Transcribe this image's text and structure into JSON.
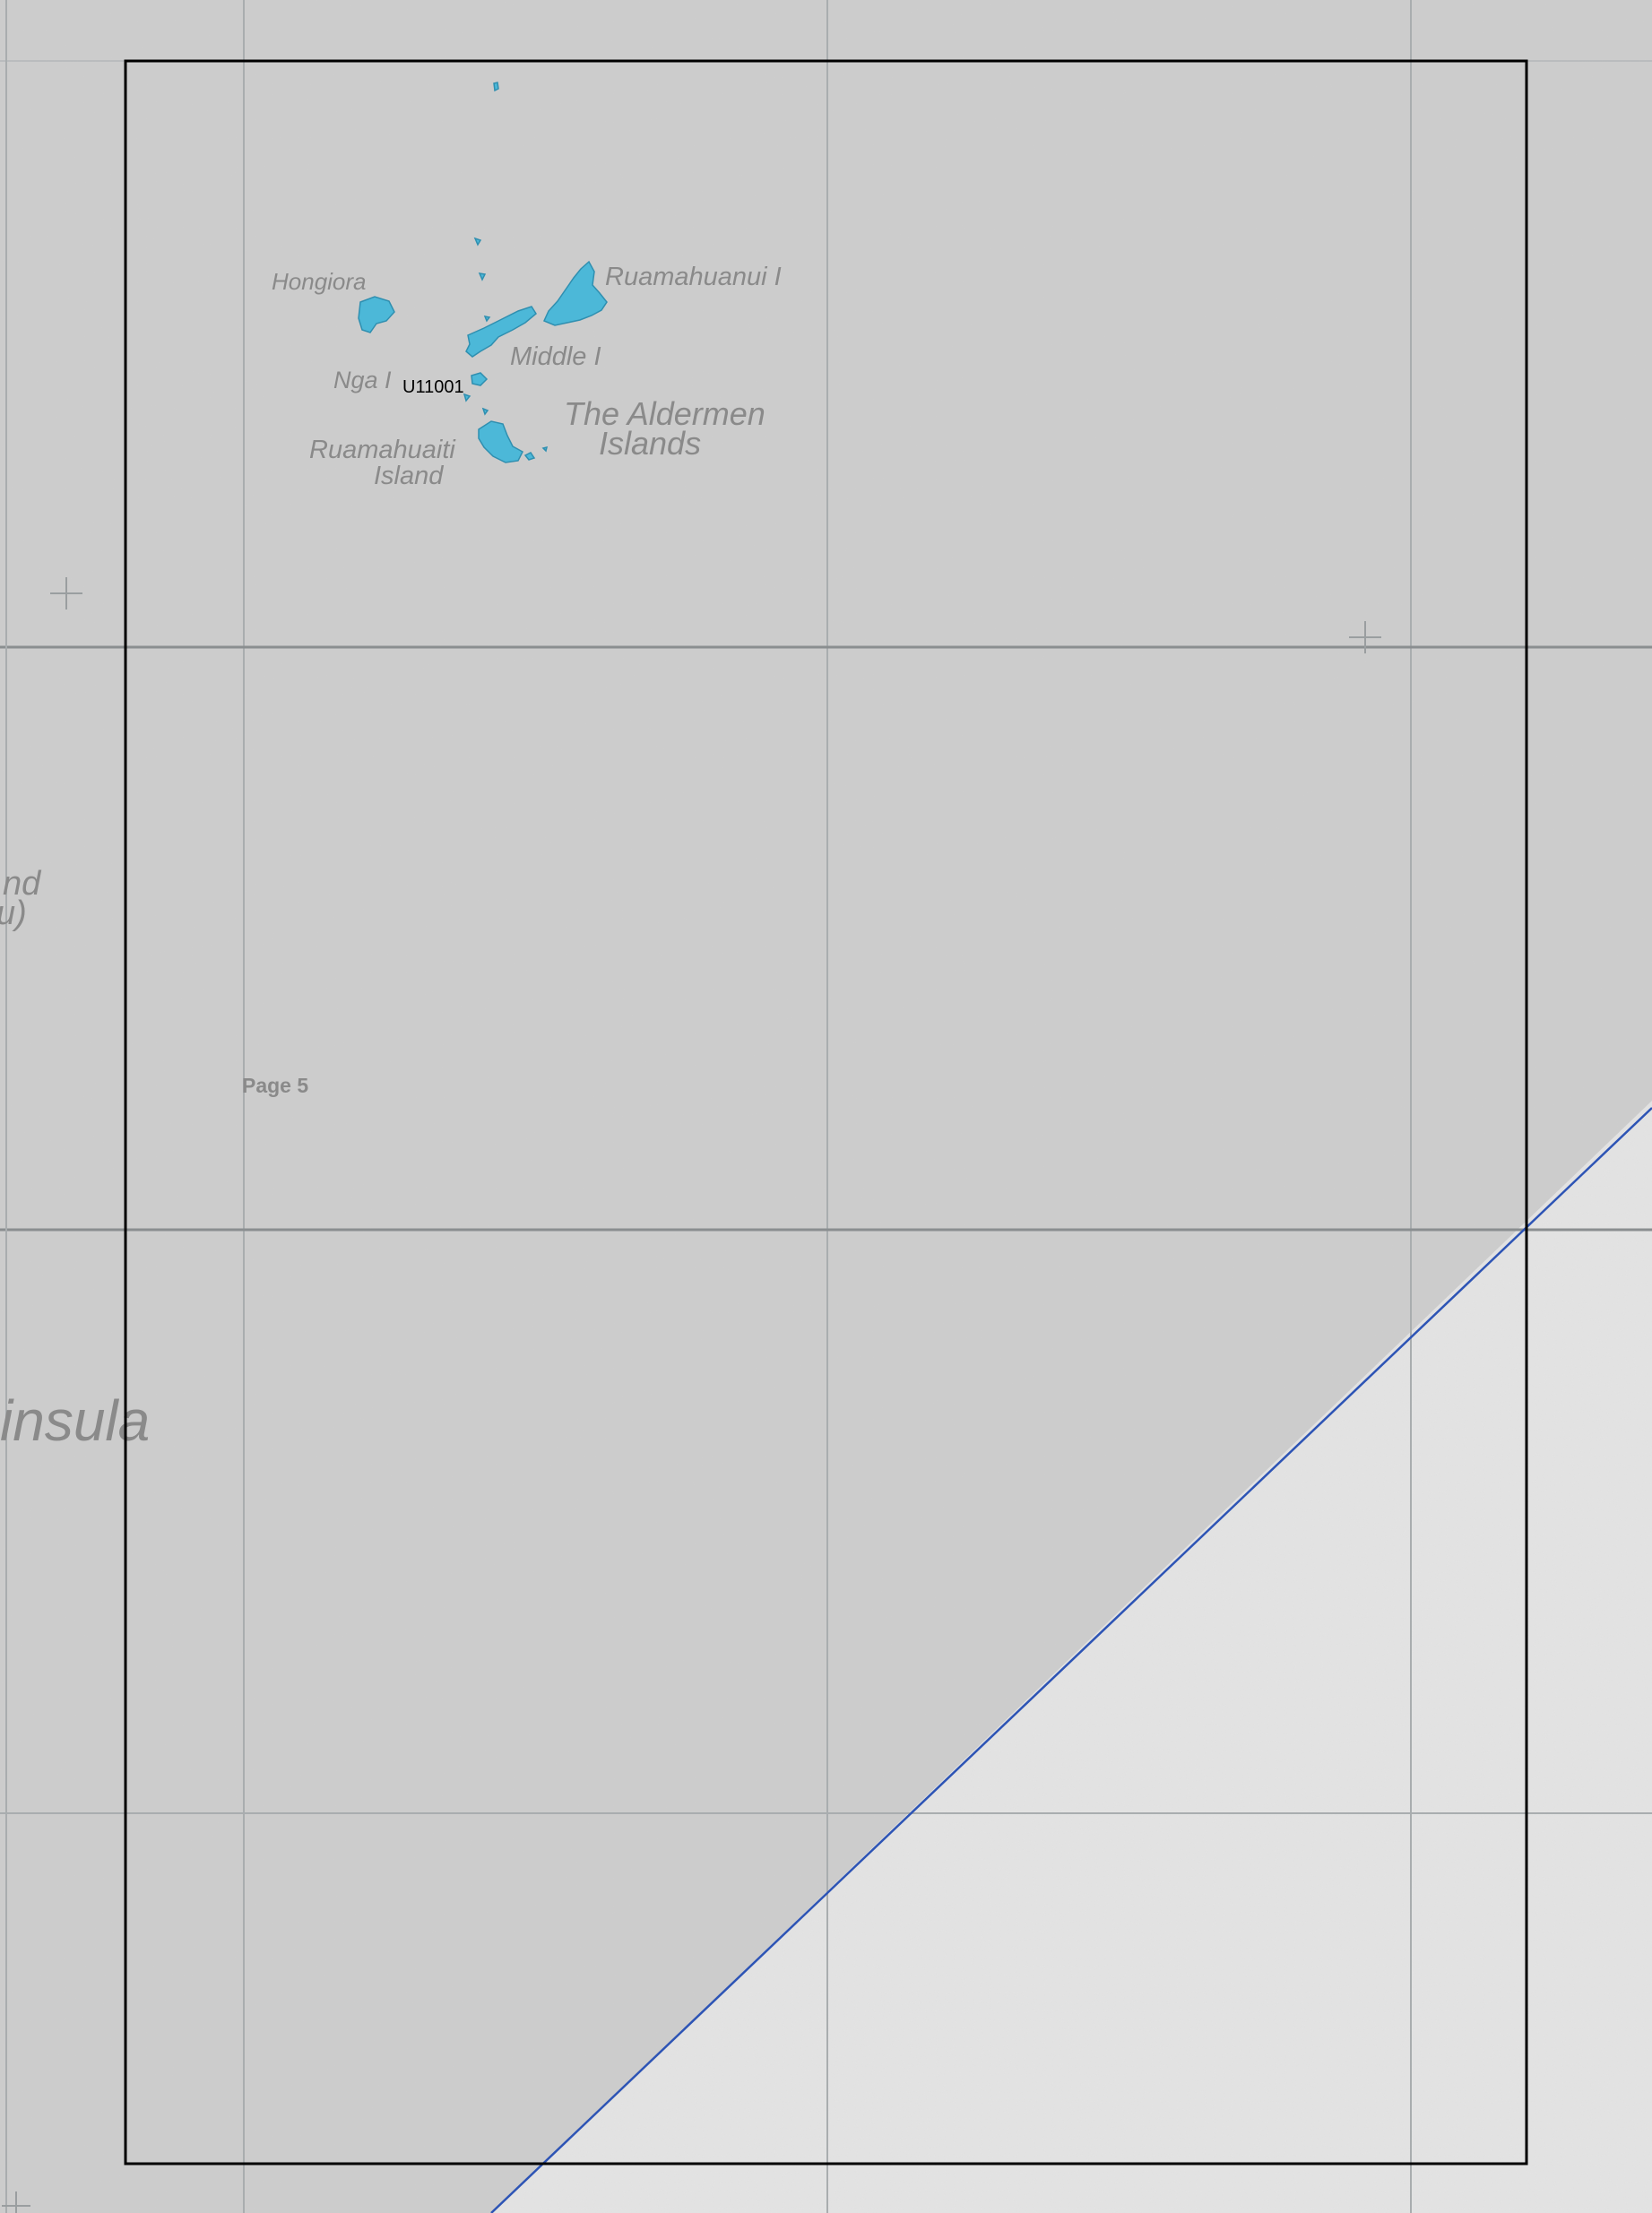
{
  "map": {
    "colors": {
      "land": "#cdcdcd",
      "sea": "#e4e4e4",
      "grid": "#a9adaf",
      "grid_major": "#8a8e90",
      "island": "#4cb8d8",
      "island_edge": "#2f8fb0",
      "boundary": "#2d54b5",
      "frame": "#000000"
    },
    "labels": {
      "hongiora": "Hongiora",
      "ruamahuanui": "Ruamahuanui I",
      "middle": "Middle I",
      "nga": "Nga I",
      "aldermen_line1": "The Aldermen",
      "aldermen_line2": "Islands",
      "ruamahuaiti_line1": "Ruamahuaiti",
      "ruamahuaiti_line2": "Island",
      "edge_nd": "nd",
      "edge_u": "u)",
      "edge_peninsula": "insula"
    },
    "sheet_code": "U11001",
    "page_label": "Page 5"
  }
}
